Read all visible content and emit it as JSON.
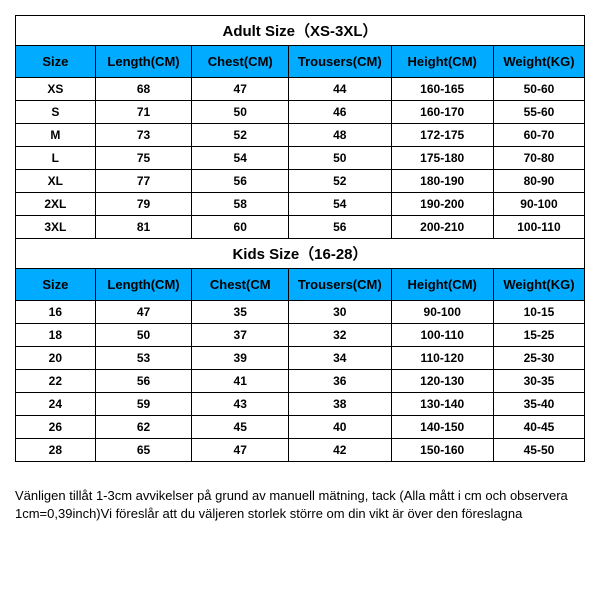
{
  "adult": {
    "title": "Adult Size（XS-3XL）",
    "columns": [
      "Size",
      "Length(CM)",
      "Chest(CM)",
      "Trousers(CM)",
      "Height(CM)",
      "Weight(KG)"
    ],
    "rows": [
      [
        "XS",
        "68",
        "47",
        "44",
        "160-165",
        "50-60"
      ],
      [
        "S",
        "71",
        "50",
        "46",
        "160-170",
        "55-60"
      ],
      [
        "M",
        "73",
        "52",
        "48",
        "172-175",
        "60-70"
      ],
      [
        "L",
        "75",
        "54",
        "50",
        "175-180",
        "70-80"
      ],
      [
        "XL",
        "77",
        "56",
        "52",
        "180-190",
        "80-90"
      ],
      [
        "2XL",
        "79",
        "58",
        "54",
        "190-200",
        "90-100"
      ],
      [
        "3XL",
        "81",
        "60",
        "56",
        "200-210",
        "100-110"
      ]
    ]
  },
  "kids": {
    "title": "Kids Size（16-28）",
    "columns": [
      "Size",
      "Length(CM)",
      "Chest(CM",
      "Trousers(CM)",
      "Height(CM)",
      "Weight(KG)"
    ],
    "rows": [
      [
        "16",
        "47",
        "35",
        "30",
        "90-100",
        "10-15"
      ],
      [
        "18",
        "50",
        "37",
        "32",
        "100-110",
        "15-25"
      ],
      [
        "20",
        "53",
        "39",
        "34",
        "110-120",
        "25-30"
      ],
      [
        "22",
        "56",
        "41",
        "36",
        "120-130",
        "30-35"
      ],
      [
        "24",
        "59",
        "43",
        "38",
        "130-140",
        "35-40"
      ],
      [
        "26",
        "62",
        "45",
        "40",
        "140-150",
        "40-45"
      ],
      [
        "28",
        "65",
        "47",
        "42",
        "150-160",
        "45-50"
      ]
    ]
  },
  "footer": "Vänligen tillåt 1-3cm avvikelser på grund av manuell mätning, tack (Alla mått i cm och observera 1cm=0,39inch)Vi föreslår att du väljeren storlek större om din vikt är över den föreslagna",
  "styling": {
    "header_bg": "#01abff",
    "border_color": "#000000",
    "col_widths_pct": [
      14,
      17,
      17,
      18,
      18,
      16
    ]
  }
}
